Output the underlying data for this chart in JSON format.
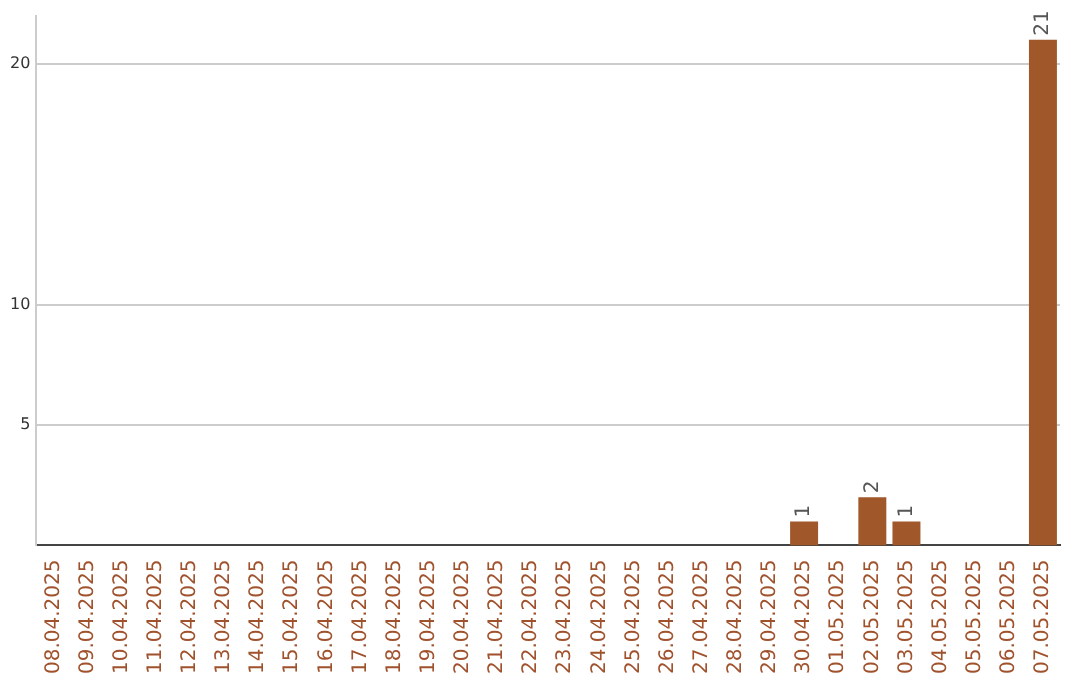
{
  "chart_data": {
    "type": "bar",
    "categories": [
      "08.04.2025",
      "09.04.2025",
      "10.04.2025",
      "11.04.2025",
      "12.04.2025",
      "13.04.2025",
      "14.04.2025",
      "15.04.2025",
      "16.04.2025",
      "17.04.2025",
      "18.04.2025",
      "19.04.2025",
      "20.04.2025",
      "21.04.2025",
      "22.04.2025",
      "23.04.2025",
      "24.04.2025",
      "25.04.2025",
      "26.04.2025",
      "27.04.2025",
      "28.04.2025",
      "29.04.2025",
      "30.04.2025",
      "01.05.2025",
      "02.05.2025",
      "03.05.2025",
      "04.05.2025",
      "05.05.2025",
      "06.05.2025",
      "07.05.2025"
    ],
    "values": [
      0,
      0,
      0,
      0,
      0,
      0,
      0,
      0,
      0,
      0,
      0,
      0,
      0,
      0,
      0,
      0,
      0,
      0,
      0,
      0,
      0,
      0,
      1,
      0,
      2,
      1,
      0,
      0,
      0,
      21
    ],
    "value_labels": [
      null,
      null,
      null,
      null,
      null,
      null,
      null,
      null,
      null,
      null,
      null,
      null,
      null,
      null,
      null,
      null,
      null,
      null,
      null,
      null,
      null,
      null,
      "1",
      null,
      "2",
      "1",
      null,
      null,
      null,
      "21"
    ],
    "color": "#a0582a",
    "ylim": [
      0,
      22
    ],
    "yticks": [
      5,
      10,
      20
    ],
    "grid": "y",
    "legend": false
  }
}
